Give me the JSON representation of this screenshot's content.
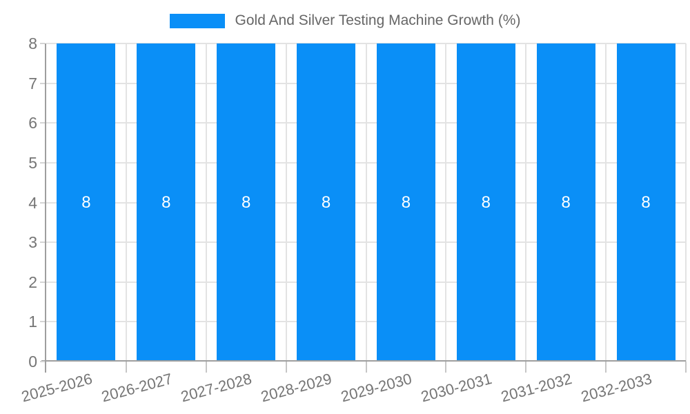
{
  "chart_data": {
    "type": "bar",
    "title": "Gold And Silver Testing Machine Growth (%)",
    "legend": {
      "label": "Gold And Silver Testing Machine Growth (%)",
      "position": "top",
      "swatch_color": "#0a8ff7"
    },
    "categories": [
      "2025-2026",
      "2026-2027",
      "2027-2028",
      "2028-2029",
      "2029-2030",
      "2030-2031",
      "2031-2032",
      "2032-2033"
    ],
    "values": [
      8,
      8,
      8,
      8,
      8,
      8,
      8,
      8
    ],
    "xlabel": "",
    "ylabel": "",
    "ylim": [
      0,
      8
    ],
    "yticks": [
      0,
      1,
      2,
      3,
      4,
      5,
      6,
      7,
      8
    ],
    "grid": "on",
    "colors": {
      "bar": "#0a8ff7",
      "bar_label": "#ffffff",
      "grid_line": "#e3e3e3",
      "axis_line": "#9e9e9e",
      "tick_text": "#757575",
      "legend_text": "#666666",
      "background": "#ffffff"
    }
  }
}
